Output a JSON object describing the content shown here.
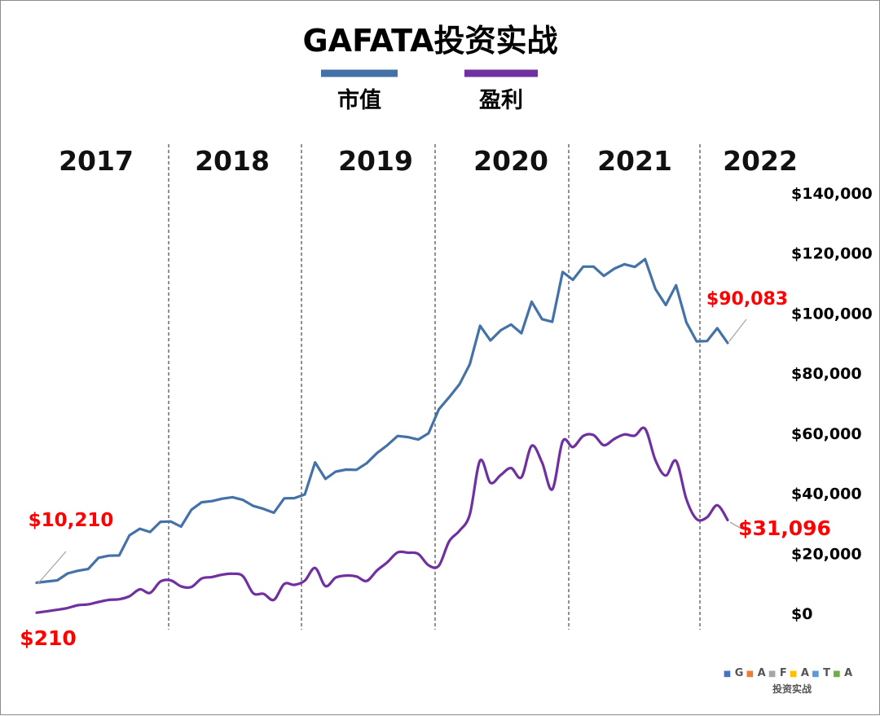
{
  "chart_data": {
    "type": "line",
    "title": "GAFATA投资实战",
    "legend": {
      "placement": "top-center"
    },
    "series": [
      {
        "name": "市值",
        "color": "#4472a8",
        "values": [
          10210,
          10600,
          11000,
          13300,
          14200,
          14800,
          18500,
          19200,
          19300,
          26000,
          28200,
          27100,
          30500,
          30600,
          28900,
          34500,
          37000,
          37400,
          38200,
          38700,
          37800,
          35800,
          34800,
          33500,
          38300,
          38400,
          39600,
          50300,
          44800,
          47200,
          47900,
          47800,
          50000,
          53400,
          56000,
          59100,
          58700,
          57900,
          60000,
          68000,
          72000,
          76300,
          83000,
          95800,
          90900,
          94300,
          96200,
          93300,
          103800,
          98000,
          97100,
          113700,
          111100,
          115500,
          115500,
          112400,
          114800,
          116300,
          115400,
          118000,
          108000,
          102700,
          109300,
          96900,
          90600,
          90700,
          95000,
          90083
        ]
      },
      {
        "name": "盈利",
        "color": "#7030a0",
        "values": [
          210,
          700,
          1200,
          1800,
          2700,
          3000,
          3800,
          4500,
          4700,
          5700,
          8000,
          6800,
          10600,
          11000,
          9000,
          8800,
          11600,
          12100,
          12900,
          13200,
          12400,
          6700,
          6500,
          4500,
          9800,
          9500,
          10900,
          15100,
          9100,
          11900,
          12600,
          12300,
          10800,
          14300,
          17000,
          20300,
          20200,
          19800,
          16000,
          15900,
          24000,
          27500,
          33000,
          50900,
          43500,
          46100,
          48400,
          45300,
          55800,
          50300,
          41300,
          57300,
          55400,
          59100,
          59400,
          56000,
          58100,
          59600,
          59200,
          61500,
          51000,
          45900,
          50800,
          38000,
          31400,
          32000,
          36000,
          31096
        ]
      }
    ],
    "ylim": [
      0,
      140000
    ],
    "y_axis": {
      "side": "right",
      "ticks": [
        "$0",
        "$20,000",
        "$40,000",
        "$60,000",
        "$80,000",
        "$100,000",
        "$120,000",
        "$140,000"
      ]
    },
    "x_axis": {
      "year_labels": [
        "2017",
        "2018",
        "2019",
        "2020",
        "2021",
        "2022"
      ],
      "gridlines": "dashed vertical year separators"
    },
    "grid": false,
    "annotations": [
      {
        "series": 0,
        "point": "first",
        "text": "$10,210"
      },
      {
        "series": 1,
        "point": "first",
        "text": "$210"
      },
      {
        "series": 0,
        "point": "last",
        "text": "$90,083"
      },
      {
        "series": 1,
        "point": "last",
        "text": "$31,096"
      }
    ]
  },
  "watermark": {
    "letters": [
      {
        "char": "G",
        "color": "#4472c4"
      },
      {
        "char": "A",
        "color": "#ed7d31"
      },
      {
        "char": "F",
        "color": "#a5a5a5"
      },
      {
        "char": "A",
        "color": "#ffc000"
      },
      {
        "char": "T",
        "color": "#5b9bd5"
      },
      {
        "char": "A",
        "color": "#70ad47"
      }
    ],
    "caption": "投资实战"
  }
}
